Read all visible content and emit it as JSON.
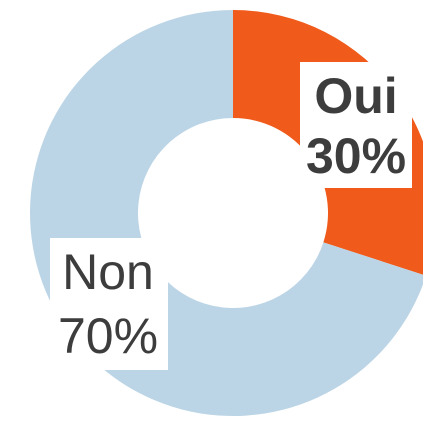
{
  "chart_data": {
    "type": "donut",
    "categories": [
      "Oui",
      "Non"
    ],
    "values": [
      30,
      70
    ],
    "value_labels": [
      "30%",
      "70%"
    ],
    "colors": [
      "#f05a1a",
      "#bcd5e6"
    ]
  }
}
